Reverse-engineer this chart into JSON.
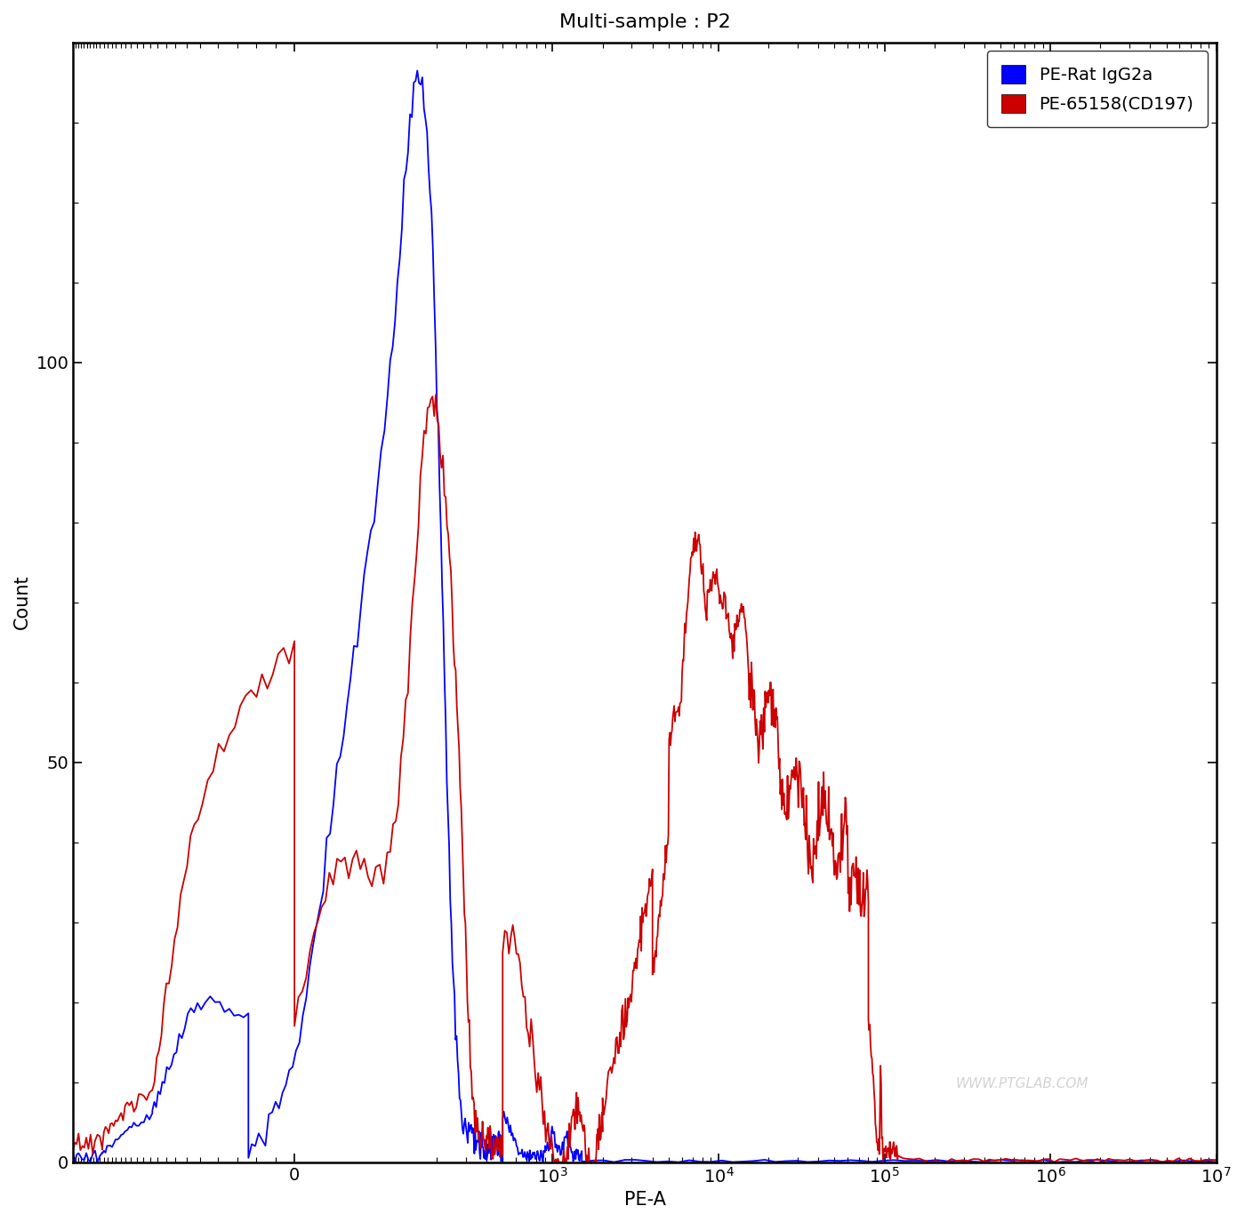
{
  "title": "Multi-sample : P2",
  "xlabel": "PE-A",
  "ylabel": "Count",
  "legend_labels": [
    "PE-Rat IgG2a",
    "PE-65158(CD197)"
  ],
  "background_color": "#FFFFFF",
  "watermark": "WWW.PTGLAB.COM",
  "ylim": [
    0,
    140
  ],
  "yticks": [
    0,
    50,
    100
  ],
  "blue_color": "#0000FF",
  "red_color": "#CC0000",
  "title_fontsize": 16,
  "axis_fontsize": 15,
  "tick_fontsize": 14,
  "xlim_min": -600,
  "xlim_max": 10000000.0,
  "linthresh": 100,
  "linscale": 0.5
}
